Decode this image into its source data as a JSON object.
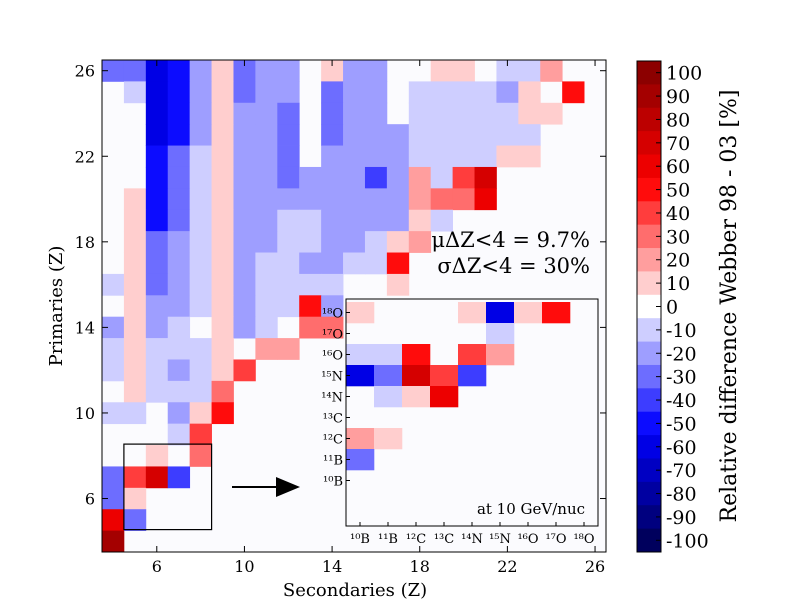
{
  "chart_data": {
    "type": "heatmap",
    "xlabel": "Secondaries (Z)",
    "ylabel": "Primaries (Z)",
    "x_range": [
      3.5,
      26.5
    ],
    "y_range": [
      3.5,
      26.5
    ],
    "x_ticks": [
      6,
      10,
      14,
      18,
      22,
      26
    ],
    "y_ticks": [
      6,
      10,
      14,
      18,
      22,
      26
    ],
    "stats_line1": "μΔZ<4 = 9.7%",
    "stats_line2": "σΔZ<4 = 30%",
    "colorbar": {
      "label": "Relative difference Webber 98 - 03 [%]",
      "range": [
        -105,
        105
      ],
      "ticks": [
        100,
        90,
        80,
        70,
        60,
        50,
        40,
        30,
        20,
        10,
        0,
        -10,
        -20,
        -30,
        -40,
        -50,
        -60,
        -70,
        -80,
        -90,
        -100
      ],
      "tick_labels": [
        "100",
        "90",
        "80",
        "70",
        "60",
        "50",
        "40",
        "30",
        "20",
        "10",
        "0",
        "-10",
        "-20",
        "-30",
        "-40",
        "-50",
        "-60",
        "-70",
        "-80",
        "-90",
        "-100"
      ]
    },
    "rows": [
      {
        "z": 26,
        "values": [
          -30,
          -30,
          -60,
          -50,
          -20,
          10,
          -30,
          -20,
          -20,
          0,
          10,
          -20,
          -20,
          0,
          0,
          10,
          10,
          0,
          -10,
          -10,
          20,
          0,
          0
        ]
      },
      {
        "z": 25,
        "values": [
          0,
          -10,
          -60,
          -50,
          -20,
          10,
          -30,
          -20,
          -20,
          0,
          -30,
          -20,
          -20,
          0,
          -10,
          -10,
          -10,
          -10,
          -20,
          10,
          0,
          50,
          0
        ]
      },
      {
        "z": 24,
        "values": [
          0,
          0,
          -60,
          -50,
          -20,
          10,
          -20,
          -20,
          -30,
          0,
          -30,
          -20,
          -20,
          0,
          -10,
          -10,
          -10,
          -10,
          -10,
          10,
          10,
          0,
          0
        ]
      },
      {
        "z": 23,
        "values": [
          0,
          0,
          -60,
          -50,
          -20,
          10,
          -20,
          -20,
          -30,
          0,
          -30,
          -20,
          -20,
          -20,
          -10,
          -10,
          -10,
          -10,
          -10,
          -10,
          0,
          0,
          0
        ]
      },
      {
        "z": 22,
        "values": [
          0,
          0,
          -50,
          -30,
          -10,
          10,
          -20,
          -20,
          -30,
          0,
          -20,
          -20,
          -20,
          -20,
          -10,
          -10,
          -10,
          -10,
          10,
          10,
          0,
          0,
          0
        ]
      },
      {
        "z": 21,
        "values": [
          0,
          0,
          -50,
          -30,
          -10,
          10,
          -20,
          -20,
          -30,
          -20,
          -20,
          -20,
          -40,
          -20,
          20,
          -10,
          40,
          70,
          0,
          0,
          0,
          0,
          0
        ]
      },
      {
        "z": 20,
        "values": [
          0,
          10,
          -50,
          -30,
          -10,
          10,
          -20,
          -20,
          -20,
          -20,
          -20,
          -20,
          -20,
          -20,
          20,
          30,
          30,
          60,
          0,
          0,
          0,
          0,
          0
        ]
      },
      {
        "z": 19,
        "values": [
          0,
          10,
          -50,
          -30,
          -10,
          10,
          -20,
          -20,
          -10,
          -10,
          -20,
          -20,
          -20,
          -20,
          10,
          -10,
          0,
          0,
          0,
          0,
          0,
          0,
          0
        ]
      },
      {
        "z": 18,
        "values": [
          0,
          10,
          -30,
          -20,
          -10,
          10,
          -20,
          -20,
          -10,
          -10,
          -20,
          -20,
          -10,
          10,
          20,
          0,
          0,
          0,
          0,
          0,
          0,
          0,
          0
        ]
      },
      {
        "z": 17,
        "values": [
          0,
          10,
          -30,
          -20,
          -10,
          10,
          -20,
          -10,
          -10,
          -20,
          -20,
          -10,
          -10,
          50,
          0,
          0,
          0,
          0,
          0,
          0,
          0,
          0,
          0
        ]
      },
      {
        "z": 16,
        "values": [
          -10,
          10,
          -30,
          -20,
          -10,
          10,
          -20,
          -10,
          -10,
          -10,
          -10,
          0,
          0,
          10,
          0,
          0,
          0,
          0,
          0,
          0,
          0,
          0,
          0
        ]
      },
      {
        "z": 15,
        "values": [
          0,
          10,
          -20,
          -20,
          -10,
          10,
          -20,
          -10,
          -10,
          50,
          -20,
          0,
          0,
          0,
          0,
          0,
          0,
          0,
          0,
          0,
          0,
          0,
          0
        ]
      },
      {
        "z": 14,
        "values": [
          -20,
          10,
          -20,
          -10,
          0,
          10,
          -20,
          -10,
          0,
          30,
          30,
          0,
          0,
          0,
          0,
          0,
          0,
          0,
          0,
          0,
          0,
          0,
          0
        ]
      },
      {
        "z": 13,
        "values": [
          -10,
          10,
          -10,
          -10,
          -10,
          10,
          0,
          20,
          20,
          0,
          0,
          0,
          0,
          0,
          0,
          0,
          0,
          0,
          0,
          0,
          0,
          0,
          0
        ]
      },
      {
        "z": 12,
        "values": [
          -10,
          10,
          -10,
          -20,
          -10,
          10,
          40,
          0,
          0,
          0,
          0,
          0,
          0,
          0,
          0,
          0,
          0,
          0,
          0,
          0,
          0,
          0,
          0
        ]
      },
      {
        "z": 11,
        "values": [
          0,
          10,
          -10,
          -10,
          -10,
          30,
          0,
          0,
          0,
          0,
          0,
          0,
          0,
          0,
          0,
          0,
          0,
          0,
          0,
          0,
          0,
          0,
          0
        ]
      },
      {
        "z": 10,
        "values": [
          -10,
          -10,
          0,
          -20,
          10,
          50,
          0,
          0,
          0,
          0,
          0,
          0,
          0,
          0,
          0,
          0,
          0,
          0,
          0,
          0,
          0,
          0,
          0
        ]
      },
      {
        "z": 9,
        "values": [
          0,
          0,
          0,
          -10,
          40,
          0,
          0,
          0,
          0,
          0,
          0,
          0,
          0,
          0,
          0,
          0,
          0,
          0,
          0,
          0,
          0,
          0,
          0
        ]
      },
      {
        "z": 8,
        "values": [
          0,
          0,
          10,
          0,
          30,
          0,
          0,
          0,
          0,
          0,
          0,
          0,
          0,
          0,
          0,
          0,
          0,
          0,
          0,
          0,
          0,
          0,
          0
        ]
      },
      {
        "z": 7,
        "values": [
          -30,
          40,
          70,
          -40,
          0,
          0,
          0,
          0,
          0,
          0,
          0,
          0,
          0,
          0,
          0,
          0,
          0,
          0,
          0,
          0,
          0,
          0,
          0
        ]
      },
      {
        "z": 6,
        "values": [
          -30,
          10,
          0,
          0,
          0,
          0,
          0,
          0,
          0,
          0,
          0,
          0,
          0,
          0,
          0,
          0,
          0,
          0,
          0,
          0,
          0,
          0,
          0
        ]
      },
      {
        "z": 5,
        "values": [
          60,
          -30,
          0,
          0,
          0,
          0,
          0,
          0,
          0,
          0,
          0,
          0,
          0,
          0,
          0,
          0,
          0,
          0,
          0,
          0,
          0,
          0,
          0
        ]
      },
      {
        "z": 4,
        "values": [
          90,
          0,
          0,
          0,
          0,
          0,
          0,
          0,
          0,
          0,
          0,
          0,
          0,
          0,
          0,
          0,
          0,
          0,
          0,
          0,
          0,
          0,
          0
        ]
      }
    ],
    "inset": {
      "note": "at 10 GeV/nuc",
      "x_labels": [
        "¹⁰B",
        "¹¹B",
        "¹²C",
        "¹³C",
        "¹⁴N",
        "¹⁵N",
        "¹⁶O",
        "¹⁷O",
        "¹⁸O"
      ],
      "y_labels": [
        "¹⁸O",
        "¹⁷O",
        "¹⁶O",
        "¹⁵N",
        "¹⁴N",
        "¹³C",
        "¹²C",
        "¹¹B",
        "¹⁰B"
      ],
      "rows": [
        [
          10,
          0,
          0,
          0,
          10,
          -60,
          10,
          50,
          0
        ],
        [
          0,
          0,
          0,
          0,
          0,
          -10,
          0,
          0,
          0
        ],
        [
          -10,
          -10,
          50,
          0,
          40,
          20,
          0,
          0,
          0
        ],
        [
          -60,
          -30,
          70,
          40,
          -40,
          0,
          0,
          0,
          0
        ],
        [
          0,
          -10,
          10,
          60,
          0,
          0,
          0,
          0,
          0
        ],
        [
          0,
          0,
          0,
          0,
          0,
          0,
          0,
          0,
          0
        ],
        [
          20,
          10,
          0,
          0,
          0,
          0,
          0,
          0,
          0
        ],
        [
          -30,
          0,
          0,
          0,
          0,
          0,
          0,
          0,
          0
        ],
        [
          0,
          0,
          0,
          0,
          0,
          0,
          0,
          0,
          0
        ]
      ]
    }
  }
}
